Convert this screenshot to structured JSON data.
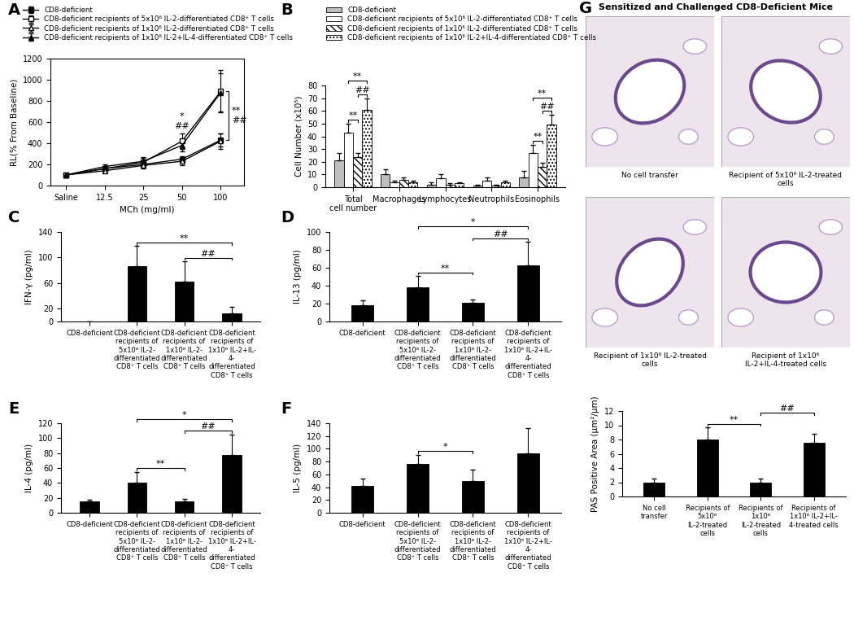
{
  "chart_data": [
    {
      "panel": "A",
      "type": "line",
      "categories": [
        "Saline",
        "12.5",
        "25",
        "50",
        "100"
      ],
      "xlabel": "MCh (mg/ml)",
      "ylabel": "RL(% From Baseline)",
      "ylim": [
        0,
        1200
      ],
      "yticks": [
        0,
        200,
        400,
        600,
        800,
        1000,
        1200
      ],
      "legend": "upper left",
      "series": [
        {
          "name": "CD8-deficient",
          "color": "#000000",
          "marker": "filled_square",
          "values": [
            100,
            160,
            200,
            250,
            430
          ],
          "errors": [
            0,
            20,
            30,
            30,
            60
          ]
        },
        {
          "name": "CD8-deficient recipients of 5x10⁶ IL-2-differentiated CD8⁺ T cells",
          "color": "#000000",
          "marker": "open_square",
          "values": [
            100,
            160,
            220,
            420,
            890
          ],
          "errors": [
            0,
            20,
            40,
            70,
            200
          ]
        },
        {
          "name": "CD8-deficient recipients of 1x10⁶ IL-2-differentiated CD8⁺ T cells",
          "color": "#000000",
          "marker": "open_triangle",
          "values": [
            100,
            140,
            190,
            230,
            420
          ],
          "errors": [
            0,
            20,
            30,
            40,
            70
          ]
        },
        {
          "name": "CD8-deficient recipients of 1x10⁶ IL-2+IL-4-differentiated CD8⁺ T cells",
          "color": "#000000",
          "marker": "filled_triangle",
          "values": [
            100,
            180,
            230,
            380,
            880
          ],
          "errors": [
            0,
            20,
            40,
            60,
            180
          ]
        }
      ],
      "annotations": [
        {
          "x": "50",
          "texts": [
            "*",
            "##"
          ]
        }
      ],
      "brackets": [
        {
          "x": "100",
          "from": 0,
          "to": 1,
          "labels": [
            "**",
            "##"
          ]
        }
      ]
    },
    {
      "panel": "B",
      "type": "bar",
      "categories": [
        "Total\ncell number",
        "Macrophages",
        "Lymphocytes",
        "Neutrophils",
        "Eosinophils"
      ],
      "ylabel": "Cell Number (x10⁵)",
      "ylim": [
        0,
        80
      ],
      "yticks": [
        0,
        10,
        20,
        30,
        40,
        50,
        60,
        70,
        80
      ],
      "legend": "upper left",
      "series": [
        {
          "name": "CD8-deficient",
          "color": "#bfbfbf",
          "values": [
            21,
            10,
            2,
            1,
            8
          ],
          "errors": [
            6,
            4,
            2,
            1,
            5
          ]
        },
        {
          "name": "CD8-deficient recipients of 5x10⁶ IL-2-differentiated CD8⁺ T cells",
          "color": "#ffffff",
          "values": [
            43,
            4,
            7,
            5,
            27
          ],
          "errors": [
            7,
            1,
            3,
            3,
            6
          ]
        },
        {
          "name": "CD8-deficient recipients of 1x10⁶ IL-2-differentiated CD8⁺ T cells",
          "color": "#ffffff",
          "values": [
            24,
            6,
            2,
            1,
            16
          ],
          "errors": [
            3,
            2,
            1,
            1,
            3
          ]
        },
        {
          "name": "CD8-deficient recipients of 1x10⁶ IL-2+IL-4-differentiated CD8⁺ T cells",
          "color": "#ffffff",
          "values": [
            61,
            4,
            3,
            4,
            49
          ],
          "errors": [
            9,
            1,
            1,
            1,
            8
          ]
        }
      ],
      "significance": [
        {
          "category": "Total\ncell number",
          "from": 1,
          "to": 2,
          "label": "**"
        },
        {
          "category": "Total\ncell number",
          "from": 2,
          "to": 3,
          "label": "##"
        },
        {
          "category": "Total\ncell number",
          "from": 1,
          "to": 3,
          "label": "**"
        },
        {
          "category": "Eosinophils",
          "from": 1,
          "to": 2,
          "label": "**"
        },
        {
          "category": "Eosinophils",
          "from": 2,
          "to": 3,
          "label": "##"
        },
        {
          "category": "Eosinophils",
          "from": 1,
          "to": 3,
          "label": "**"
        }
      ]
    },
    {
      "panel": "C",
      "type": "bar",
      "categories": [
        "CD8-deficient",
        "CD8-deficient recipients of 5x10⁶ IL-2-differentiated CD8⁺ T cells",
        "CD8-deficient recipients of 1x10⁶ IL-2-differentiated CD8⁺ T cells",
        "CD8-deficient recipients of 1x10⁶ IL-2+IL-4-differentiated CD8⁺ T cells"
      ],
      "ylabel": "IFN-γ (pg/ml)",
      "ylim": [
        0,
        140
      ],
      "yticks": [
        0,
        20,
        60,
        100,
        140
      ],
      "color": "#000000",
      "values": [
        0.5,
        86,
        62,
        13
      ],
      "errors": [
        0,
        32,
        32,
        10
      ],
      "significance": [
        {
          "from": 2,
          "to": 3,
          "label": "##"
        },
        {
          "from": 1,
          "to": 3,
          "label": "**"
        }
      ]
    },
    {
      "panel": "D",
      "type": "bar",
      "categories": [
        "CD8-deficient",
        "CD8-deficient recipients of 5x10⁶ IL-2-differentiated CD8⁺ T cells",
        "CD8-deficient recipients of 1x10⁶ IL-2-differentiated CD8⁺ T cells",
        "CD8-deficient recipients of 1x10⁶ IL-2+IL-4-differentiated CD8⁺ T cells"
      ],
      "ylabel": "IL-13 (pg/ml)",
      "ylim": [
        0,
        100
      ],
      "yticks": [
        0,
        20,
        40,
        60,
        80,
        100
      ],
      "color": "#000000",
      "values": [
        18,
        38,
        21,
        63
      ],
      "errors": [
        6,
        13,
        4,
        26
      ],
      "significance": [
        {
          "from": 1,
          "to": 2,
          "label": "**"
        },
        {
          "from": 2,
          "to": 3,
          "label": "##"
        },
        {
          "from": 1,
          "to": 3,
          "label": "*"
        }
      ]
    },
    {
      "panel": "E",
      "type": "bar",
      "categories": [
        "CD8-deficient",
        "CD8-deficient recipients of 5x10⁶ IL-2-differentiated CD8⁺ T cells",
        "CD8-deficient recipients of 1x10⁶ IL-2-differentiated CD8⁺ T cells",
        "CD8-deficient recipients of 1x10⁶ IL-2+IL-4-differentiated CD8⁺ T cells"
      ],
      "ylabel": "IL-4 (pg/ml)",
      "ylim": [
        0,
        120
      ],
      "yticks": [
        0,
        20,
        40,
        60,
        80,
        100,
        120
      ],
      "color": "#000000",
      "values": [
        15,
        40,
        15,
        77
      ],
      "errors": [
        3,
        15,
        4,
        28
      ],
      "significance": [
        {
          "from": 1,
          "to": 2,
          "label": "**"
        },
        {
          "from": 2,
          "to": 3,
          "label": "##"
        },
        {
          "from": 1,
          "to": 3,
          "label": "*"
        }
      ]
    },
    {
      "panel": "F",
      "type": "bar",
      "categories": [
        "CD8-deficient",
        "CD8-deficient recipients of 5x10⁶ IL-2-differentiated CD8⁺ T cells",
        "CD8-deficient recipients of 1x10⁶ IL-2-differentiated CD8⁺ T cells",
        "CD8-deficient recipients of 1x10⁶ IL-2+IL-4-differentiated CD8⁺ T cells"
      ],
      "ylabel": "IL-5 (pg/ml)",
      "ylim": [
        0,
        140
      ],
      "yticks": [
        0,
        20,
        40,
        60,
        80,
        100,
        120,
        140
      ],
      "color": "#000000",
      "values": [
        42,
        76,
        50,
        93
      ],
      "errors": [
        12,
        15,
        18,
        40
      ],
      "significance": [
        {
          "from": 1,
          "to": 2,
          "label": "*"
        }
      ]
    },
    {
      "panel": "G",
      "type": "bar",
      "categories": [
        "No cell transfer",
        "Recipients of 5x10⁶ IL-2-treated cells",
        "Recipients of 1x10⁶ IL-2-treated cells",
        "Recipients of 1x10⁶ IL-2+IL-4-treated cells"
      ],
      "ylabel": "PAS Positive Area (µm²/µm)",
      "ylim": [
        0,
        12
      ],
      "yticks": [
        0,
        2,
        4,
        6,
        8,
        10,
        12
      ],
      "color": "#000000",
      "values": [
        2,
        8,
        2,
        7.6
      ],
      "errors": [
        0.5,
        1.7,
        0.5,
        1.2
      ],
      "significance": [
        {
          "from": 1,
          "to": 2,
          "label": "**"
        },
        {
          "from": 2,
          "to": 3,
          "label": "##"
        }
      ]
    }
  ],
  "micrographs": {
    "title": "Sensitized and Challenged CD8-Deficient Mice",
    "captions": [
      "No cell transfer",
      "Recipient of 5x10⁶ IL-2-treated cells",
      "Recipient of 1x10⁶ IL-2-treated cells",
      "Recipient of 1x10⁶ IL-2+IL-4-treated cells"
    ]
  }
}
